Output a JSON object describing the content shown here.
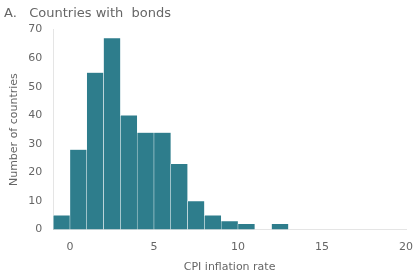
{
  "chart_data": {
    "type": "histogram",
    "title": "A.   Countries with  bonds",
    "ylabel": "Number of countries",
    "xlabel": "CPI inflation rate",
    "bins": [
      -1,
      0,
      1,
      2,
      3,
      4,
      5,
      6,
      7,
      8,
      9,
      10,
      11,
      12,
      13,
      14,
      15,
      16,
      17,
      18,
      19,
      20
    ],
    "values": [
      5,
      28,
      55,
      67,
      40,
      34,
      34,
      23,
      10,
      5,
      3,
      2,
      0,
      2,
      0,
      0,
      0,
      0,
      0,
      0,
      0
    ],
    "color": "#2e7d8c",
    "xlim": [
      -1,
      20
    ],
    "xticks": [
      0,
      5,
      10,
      15,
      20
    ],
    "ylim": [
      0,
      70
    ],
    "yticks": [
      0,
      10,
      20,
      30,
      40,
      50,
      60,
      70
    ],
    "grid": false
  }
}
